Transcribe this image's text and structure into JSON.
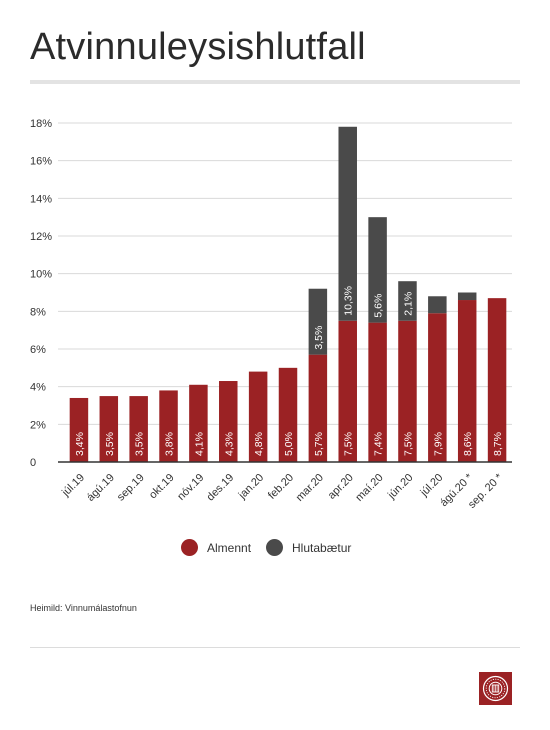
{
  "title": "Atvinnuleysishlutfall",
  "source": "Heimild: Vinnumálastofnun",
  "colors": {
    "almennt": "#9b2224",
    "hlutabaetur": "#4a4a4a",
    "grid": "#d9d9d9",
    "axis": "#333333"
  },
  "legend": {
    "almennt": "Almennt",
    "hlutabaetur": "Hlutabætur"
  },
  "logo": {
    "icon": "union-seal-icon"
  },
  "chart_data": {
    "type": "bar",
    "stacked": true,
    "categories": [
      "júl.19",
      "ágú.19",
      "sep.19",
      "okt.19",
      "nóv.19",
      "des.19",
      "jan.20",
      "feb.20",
      "mar.20",
      "apr.20",
      "maí.20",
      "jún.20",
      "júl.20",
      "ágú.20 *",
      "sep. 20 *"
    ],
    "series": [
      {
        "name": "Almennt",
        "values": [
          3.4,
          3.5,
          3.5,
          3.8,
          4.1,
          4.3,
          4.8,
          5.0,
          5.7,
          7.5,
          7.4,
          7.5,
          7.9,
          8.6,
          8.7
        ],
        "labels": [
          "3,4%",
          "3,5%",
          "3,5%",
          "3,8%",
          "4,1%",
          "4,3%",
          "4,8%",
          "5,0%",
          "5,7%",
          "7,5%",
          "7,4%",
          "7,5%",
          "7,9%",
          "8,6%",
          "8,7%"
        ]
      },
      {
        "name": "Hlutabætur",
        "values": [
          0,
          0,
          0,
          0,
          0,
          0,
          0,
          0,
          3.5,
          10.3,
          5.6,
          2.1,
          0.9,
          0.4,
          0
        ],
        "labels": [
          "",
          "",
          "",
          "",
          "",
          "",
          "",
          "",
          "3,5%",
          "10,3%",
          "5,6%",
          "2,1%",
          "",
          "",
          ""
        ]
      }
    ],
    "ylim": [
      0,
      18
    ],
    "yticks": [
      0,
      2,
      4,
      6,
      8,
      10,
      12,
      14,
      16,
      18
    ],
    "ytick_labels": [
      "0",
      "2%",
      "4%",
      "6%",
      "8%",
      "10%",
      "12%",
      "14%",
      "16%",
      "18%"
    ],
    "grid": true,
    "legend_position": "bottom-center"
  }
}
